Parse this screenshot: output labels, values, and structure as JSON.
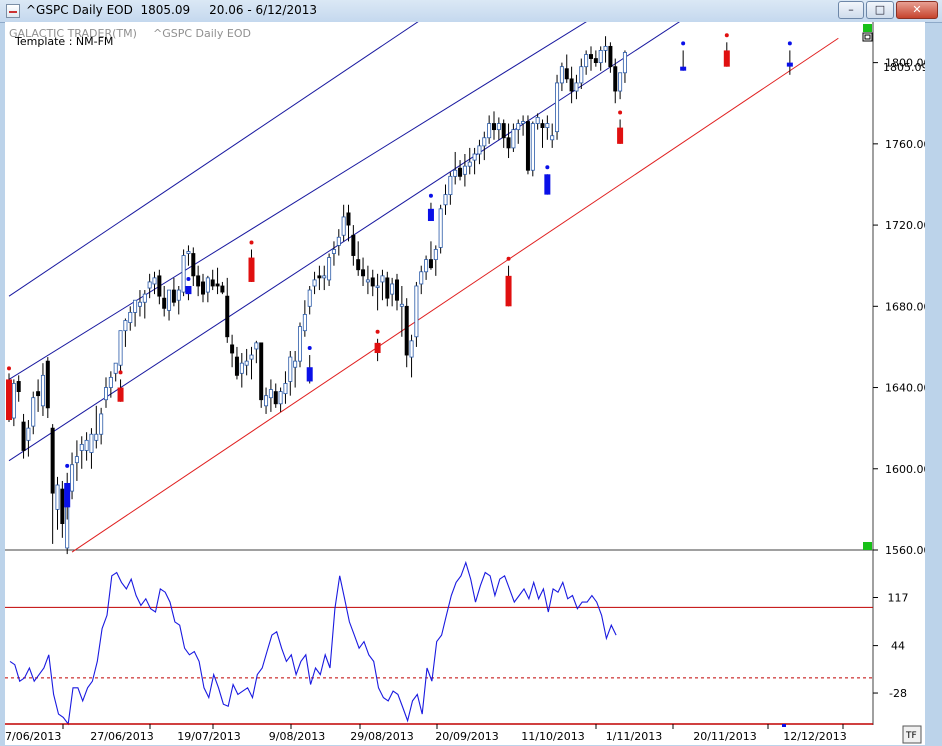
{
  "window": {
    "title": "^GSPC Daily EOD  1805.09     20.06 - 6/12/2013",
    "buttons": [
      "minimize",
      "maximize",
      "close"
    ]
  },
  "chart_data": [
    {
      "type": "candlestick",
      "header_left": "GALACTIC TRADER(TM)",
      "header_right": "^GSPC Daily EOD",
      "template_label": "Template : NM-FM",
      "last_price_label": "1805.09",
      "ylim": [
        1560,
        1820
      ],
      "y_ticks": [
        "1800.00",
        "1760.00",
        "1720.00",
        "1680.00",
        "1640.00",
        "1600.00",
        "1560.00"
      ],
      "x_tick_labels": [
        "7/06/2013",
        "27/06/2013",
        "19/07/2013",
        "9/08/2013",
        "29/08/2013",
        "20/09/2013",
        "11/10/2013",
        "1/11/2013",
        "20/11/2013",
        "12/12/2013"
      ],
      "ohlc": [
        [
          1643,
          1647,
          1623,
          1631
        ],
        [
          1625,
          1644,
          1621,
          1642
        ],
        [
          1643,
          1646,
          1633,
          1638
        ],
        [
          1623,
          1627,
          1605,
          1609
        ],
        [
          1614,
          1624,
          1606,
          1620
        ],
        [
          1621,
          1638,
          1617,
          1635
        ],
        [
          1638,
          1644,
          1628,
          1636
        ],
        [
          1631,
          1652,
          1626,
          1646
        ],
        [
          1653,
          1655,
          1625,
          1630
        ],
        [
          1620,
          1622,
          1563,
          1588
        ],
        [
          1580,
          1596,
          1570,
          1592
        ],
        [
          1590,
          1594,
          1566,
          1573
        ],
        [
          1561,
          1588,
          1558,
          1586
        ],
        [
          1589,
          1608,
          1585,
          1602
        ],
        [
          1603,
          1614,
          1594,
          1606
        ],
        [
          1609,
          1616,
          1600,
          1612
        ],
        [
          1609,
          1618,
          1604,
          1614
        ],
        [
          1608,
          1620,
          1600,
          1617
        ],
        [
          1614,
          1631,
          1610,
          1617
        ],
        [
          1617,
          1630,
          1612,
          1627
        ],
        [
          1634,
          1645,
          1630,
          1640
        ],
        [
          1640,
          1648,
          1635,
          1645
        ],
        [
          1647,
          1652,
          1643,
          1652
        ],
        [
          1651,
          1668,
          1648,
          1668
        ],
        [
          1668,
          1674,
          1660,
          1673
        ],
        [
          1672,
          1680,
          1668,
          1677
        ],
        [
          1677,
          1683,
          1670,
          1683
        ],
        [
          1680,
          1688,
          1675,
          1682
        ],
        [
          1682,
          1688,
          1674,
          1686
        ],
        [
          1689,
          1696,
          1684,
          1692
        ],
        [
          1691,
          1697,
          1686,
          1694
        ],
        [
          1695,
          1698,
          1681,
          1685
        ],
        [
          1684,
          1690,
          1675,
          1679
        ],
        [
          1678,
          1688,
          1673,
          1688
        ],
        [
          1688,
          1694,
          1680,
          1682
        ],
        [
          1683,
          1690,
          1676,
          1688
        ],
        [
          1687,
          1708,
          1685,
          1705
        ],
        [
          1706,
          1710,
          1700,
          1707
        ],
        [
          1706,
          1709,
          1690,
          1695
        ],
        [
          1695,
          1700,
          1685,
          1690
        ],
        [
          1692,
          1696,
          1682,
          1686
        ],
        [
          1687,
          1695,
          1682,
          1694
        ],
        [
          1693,
          1698,
          1688,
          1690
        ],
        [
          1691,
          1699,
          1686,
          1690
        ],
        [
          1690,
          1692,
          1686,
          1687
        ],
        [
          1685,
          1694,
          1662,
          1665
        ],
        [
          1661,
          1666,
          1650,
          1657
        ],
        [
          1655,
          1660,
          1644,
          1646
        ],
        [
          1647,
          1657,
          1640,
          1652
        ],
        [
          1651,
          1659,
          1646,
          1653
        ],
        [
          1654,
          1660,
          1644,
          1656
        ],
        [
          1659,
          1663,
          1652,
          1662
        ],
        [
          1662,
          1662,
          1630,
          1634
        ],
        [
          1631,
          1640,
          1627,
          1636
        ],
        [
          1635,
          1644,
          1628,
          1639
        ],
        [
          1638,
          1642,
          1630,
          1632
        ],
        [
          1632,
          1640,
          1628,
          1638
        ],
        [
          1637,
          1648,
          1632,
          1642
        ],
        [
          1643,
          1658,
          1636,
          1655
        ],
        [
          1650,
          1658,
          1640,
          1653
        ],
        [
          1653,
          1672,
          1650,
          1670
        ],
        [
          1668,
          1683,
          1665,
          1676
        ],
        [
          1680,
          1690,
          1676,
          1688
        ],
        [
          1690,
          1697,
          1686,
          1693
        ],
        [
          1695,
          1700,
          1688,
          1694
        ],
        [
          1694,
          1700,
          1688,
          1695
        ],
        [
          1693,
          1706,
          1690,
          1704
        ],
        [
          1706,
          1712,
          1700,
          1708
        ],
        [
          1710,
          1718,
          1705,
          1714
        ],
        [
          1715,
          1730,
          1712,
          1724
        ],
        [
          1726,
          1730,
          1712,
          1720
        ],
        [
          1715,
          1720,
          1700,
          1705
        ],
        [
          1703,
          1712,
          1695,
          1698
        ],
        [
          1698,
          1704,
          1690,
          1695
        ],
        [
          1692,
          1700,
          1686,
          1693
        ],
        [
          1694,
          1698,
          1685,
          1690
        ],
        [
          1690,
          1696,
          1678,
          1690
        ],
        [
          1692,
          1698,
          1683,
          1695
        ],
        [
          1694,
          1697,
          1680,
          1684
        ],
        [
          1686,
          1694,
          1680,
          1691
        ],
        [
          1693,
          1696,
          1678,
          1683
        ],
        [
          1680,
          1690,
          1665,
          1681
        ],
        [
          1680,
          1684,
          1650,
          1656
        ],
        [
          1655,
          1666,
          1645,
          1663
        ],
        [
          1665,
          1692,
          1660,
          1690
        ],
        [
          1691,
          1700,
          1686,
          1697
        ],
        [
          1697,
          1705,
          1693,
          1703
        ],
        [
          1703,
          1712,
          1698,
          1699
        ],
        [
          1703,
          1710,
          1695,
          1708
        ],
        [
          1709,
          1730,
          1706,
          1728
        ],
        [
          1730,
          1740,
          1725,
          1735
        ],
        [
          1735,
          1746,
          1730,
          1744
        ],
        [
          1744,
          1756,
          1740,
          1747
        ],
        [
          1748,
          1752,
          1742,
          1744
        ],
        [
          1745,
          1755,
          1739,
          1749
        ],
        [
          1749,
          1758,
          1745,
          1751
        ],
        [
          1752,
          1758,
          1745,
          1755
        ],
        [
          1755,
          1762,
          1750,
          1759
        ],
        [
          1759,
          1766,
          1752,
          1763
        ],
        [
          1763,
          1774,
          1760,
          1770
        ],
        [
          1770,
          1776,
          1762,
          1767
        ],
        [
          1767,
          1773,
          1762,
          1770
        ],
        [
          1770,
          1772,
          1758,
          1763
        ],
        [
          1763,
          1770,
          1753,
          1758
        ],
        [
          1758,
          1770,
          1756,
          1767
        ],
        [
          1767,
          1772,
          1760,
          1770
        ],
        [
          1770,
          1774,
          1764,
          1771
        ],
        [
          1771,
          1774,
          1745,
          1747
        ],
        [
          1747,
          1771,
          1744,
          1770
        ],
        [
          1770,
          1775,
          1767,
          1773
        ],
        [
          1770,
          1772,
          1758,
          1768
        ],
        [
          1768,
          1774,
          1762,
          1770
        ],
        [
          1762,
          1770,
          1758,
          1764
        ],
        [
          1766,
          1794,
          1762,
          1790
        ],
        [
          1790,
          1800,
          1786,
          1798
        ],
        [
          1797,
          1804,
          1790,
          1792
        ],
        [
          1792,
          1798,
          1780,
          1786
        ],
        [
          1786,
          1794,
          1782,
          1790
        ],
        [
          1790,
          1802,
          1787,
          1798
        ],
        [
          1798,
          1806,
          1794,
          1804
        ],
        [
          1804,
          1808,
          1796,
          1802
        ],
        [
          1802,
          1806,
          1798,
          1800
        ],
        [
          1800,
          1808,
          1796,
          1806
        ],
        [
          1806,
          1813,
          1800,
          1808
        ],
        [
          1808,
          1810,
          1795,
          1798
        ],
        [
          1798,
          1802,
          1780,
          1786
        ],
        [
          1786,
          1794,
          1782,
          1795
        ],
        [
          1795,
          1806,
          1790,
          1805
        ]
      ],
      "colored_bars": [
        {
          "index": 0,
          "color": "red",
          "ohlc": [
            1644,
            1646,
            1624,
            1624
          ]
        },
        {
          "index": 12,
          "color": "blue",
          "ohlc": [
            1593,
            1598,
            1575,
            1581
          ]
        },
        {
          "index": 23,
          "color": "red",
          "ohlc": [
            1640,
            1644,
            1633,
            1633
          ]
        },
        {
          "index": 37,
          "color": "blue",
          "ohlc": [
            1686,
            1690,
            1683,
            1690
          ]
        },
        {
          "index": 50,
          "color": "red",
          "ohlc": [
            1704,
            1708,
            1692,
            1692
          ]
        },
        {
          "index": 62,
          "color": "blue",
          "ohlc": [
            1643,
            1656,
            1642,
            1650
          ]
        },
        {
          "index": 76,
          "color": "red",
          "ohlc": [
            1657,
            1664,
            1653,
            1662
          ]
        },
        {
          "index": 87,
          "color": "blue",
          "ohlc": [
            1728,
            1731,
            1722,
            1722
          ]
        },
        {
          "index": 103,
          "color": "red",
          "ohlc": [
            1695,
            1700,
            1680,
            1680
          ]
        },
        {
          "index": 111,
          "color": "blue",
          "ohlc": [
            1735,
            1745,
            1735,
            1745
          ]
        },
        {
          "index": 126,
          "color": "red",
          "ohlc": [
            1768,
            1772,
            1760,
            1760
          ]
        },
        {
          "index": 139,
          "color": "blue",
          "ohlc": [
            1798,
            1806,
            1796,
            1798
          ]
        },
        {
          "index": 148,
          "color": "red",
          "ohlc": [
            1806,
            1810,
            1798,
            1798
          ]
        },
        {
          "index": 161,
          "color": "blue",
          "ohlc": [
            1800,
            1806,
            1794,
            1800
          ]
        }
      ],
      "lines": [
        {
          "name": "support",
          "color": "#e02020",
          "from": [
            13,
            1559
          ],
          "to": [
            171,
            1812
          ]
        },
        {
          "name": "channel-1",
          "color": "#1a1aa0",
          "from": [
            0,
            1604
          ],
          "to": [
            142,
            1826
          ]
        },
        {
          "name": "channel-2",
          "color": "#1a1aa0",
          "from": [
            0,
            1644
          ],
          "to": [
            123,
            1826
          ]
        },
        {
          "name": "channel-3",
          "color": "#1a1aa0",
          "from": [
            0,
            1685
          ],
          "to": [
            88,
            1826
          ]
        }
      ]
    },
    {
      "type": "line",
      "ylim": [
        -75,
        180
      ],
      "y_ticks": [
        "117",
        "44",
        "-28"
      ],
      "ref_lines": [
        {
          "value": 102,
          "style": "solid",
          "color": "#c00000"
        },
        {
          "value": -5,
          "style": "dashed",
          "color": "#c00000"
        }
      ],
      "values": [
        20,
        15,
        -10,
        -5,
        10,
        -10,
        0,
        10,
        30,
        -30,
        -60,
        -65,
        -75,
        -20,
        -20,
        -40,
        -20,
        -10,
        20,
        70,
        90,
        150,
        155,
        140,
        130,
        145,
        120,
        105,
        115,
        100,
        95,
        130,
        125,
        110,
        80,
        75,
        40,
        30,
        35,
        20,
        -20,
        -35,
        0,
        -20,
        -45,
        -48,
        -15,
        -30,
        -25,
        -20,
        -35,
        0,
        10,
        35,
        60,
        65,
        40,
        20,
        30,
        0,
        20,
        30,
        -15,
        10,
        0,
        30,
        10,
        100,
        150,
        115,
        80,
        60,
        40,
        50,
        30,
        20,
        -20,
        -35,
        -40,
        -25,
        -30,
        -50,
        -70,
        -40,
        -30,
        -60,
        10,
        -10,
        50,
        60,
        90,
        120,
        140,
        150,
        170,
        145,
        110,
        135,
        155,
        150,
        120,
        145,
        150,
        130,
        110,
        120,
        130,
        115,
        140,
        115,
        130,
        95,
        130,
        125,
        140,
        115,
        120,
        100,
        110,
        110,
        120,
        110,
        90,
        55,
        75,
        60
      ]
    }
  ]
}
